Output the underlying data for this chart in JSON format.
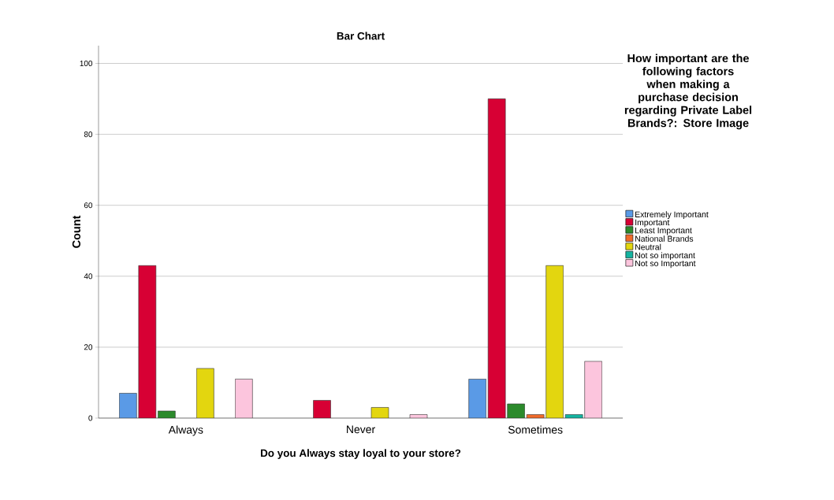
{
  "chart_data": {
    "type": "bar",
    "title": "Bar Chart",
    "xlabel": "Do you Always stay loyal to your store?",
    "ylabel": "Count",
    "legend_title": "How important are the following factors when making a purchase decision regarding Private Label Brands?: Store Image",
    "categories": [
      "Always",
      "Never",
      "Sometimes"
    ],
    "series": [
      {
        "name": "Extremely Important",
        "color": "#5a9ae6",
        "values": [
          7,
          null,
          11
        ]
      },
      {
        "name": "Important",
        "color": "#d70034",
        "values": [
          43,
          5,
          90
        ]
      },
      {
        "name": "Least Important",
        "color": "#2b8a2b",
        "values": [
          2,
          null,
          4
        ]
      },
      {
        "name": "National Brands",
        "color": "#f06a2a",
        "values": [
          null,
          null,
          1
        ]
      },
      {
        "name": "Neutral",
        "color": "#e3d60f",
        "values": [
          14,
          3,
          43
        ]
      },
      {
        "name": "Not so important",
        "color": "#14b3a0",
        "values": [
          null,
          null,
          1
        ]
      },
      {
        "name": "Not so Important",
        "color": "#fcc5dd",
        "values": [
          11,
          1,
          16
        ]
      }
    ],
    "ylim": [
      0,
      105
    ],
    "yticks": [
      0,
      20,
      40,
      60,
      80,
      100
    ],
    "grid": "y",
    "legend": "right"
  }
}
